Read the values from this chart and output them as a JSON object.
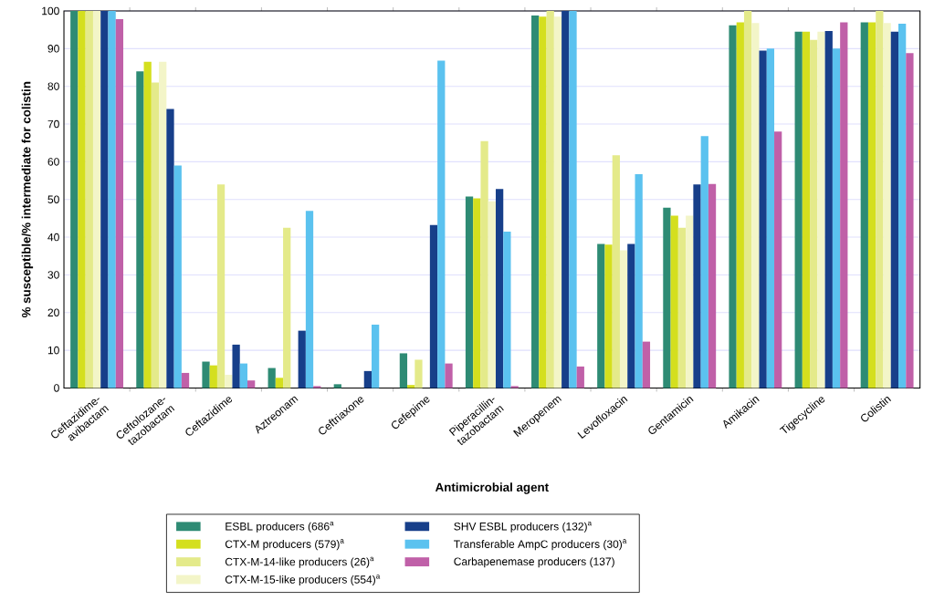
{
  "chart_data": {
    "type": "bar",
    "xlabel": "Antimicrobial agent",
    "ylabel": "% susceptible/% intermediate for colistin",
    "categories": [
      "Ceftazidime-avibactam",
      "Ceftolozane-tazobactam",
      "Ceftazidime",
      "Aztreonam",
      "Ceftriaxone",
      "Cefepime",
      "Piperacillin-tazobactam",
      "Meropenem",
      "Levofloxacin",
      "Gentamicin",
      "Amikacin",
      "Tigecycline",
      "Colistin"
    ],
    "series": [
      {
        "name": "ESBL producers (686$^{a}$",
        "color": "#2e8b74",
        "values": [
          100,
          84,
          7,
          5.3,
          1,
          9.2,
          50.8,
          98.8,
          38.2,
          47.8,
          96.2,
          94.5,
          97
        ]
      },
      {
        "name": "CTX-M producers (579)$^{a}$",
        "color": "#d4df1e",
        "values": [
          100,
          86.5,
          6,
          2.7,
          0,
          0.8,
          50.3,
          98.5,
          38,
          45.7,
          97,
          94.5,
          97
        ]
      },
      {
        "name": "CTX-M-14-like producers (26)$^{a}$",
        "color": "#e4ea8a",
        "values": [
          100,
          81,
          54,
          42.5,
          0,
          7.5,
          65.5,
          100,
          61.7,
          42.5,
          100,
          92.3,
          100
        ]
      },
      {
        "name": "CTX-M-15-like producers (554)$^{a}$",
        "color": "#f3f5c8",
        "values": [
          100,
          86.5,
          3.5,
          0,
          0,
          0,
          49.5,
          98.5,
          36.5,
          45.7,
          96.8,
          94.5,
          96.8
        ]
      },
      {
        "name": "SHV ESBL producers (132)$^{a}$",
        "color": "#173f8a",
        "values": [
          100,
          74,
          11.5,
          15.2,
          4.5,
          43.2,
          52.8,
          100,
          38.2,
          54,
          89.5,
          94.7,
          94.5
        ]
      },
      {
        "name": "Transferable AmpC producers (30)$^{a}$",
        "color": "#5bc2ef",
        "values": [
          100,
          59,
          6.5,
          47,
          16.8,
          86.8,
          41.5,
          100,
          56.7,
          66.8,
          90,
          90,
          96.6
        ]
      },
      {
        "name": "Carbapenemase producers (137)",
        "color": "#c060a8",
        "values": [
          97.8,
          4,
          2,
          0.5,
          0,
          6.5,
          0.5,
          5.7,
          12.3,
          54.1,
          68,
          97,
          88.8
        ]
      }
    ],
    "ylim": [
      0,
      100
    ],
    "yticks": [
      0,
      10,
      20,
      30,
      40,
      50,
      60,
      70,
      80,
      90,
      100
    ],
    "grid": "y",
    "legend": "bottom"
  }
}
